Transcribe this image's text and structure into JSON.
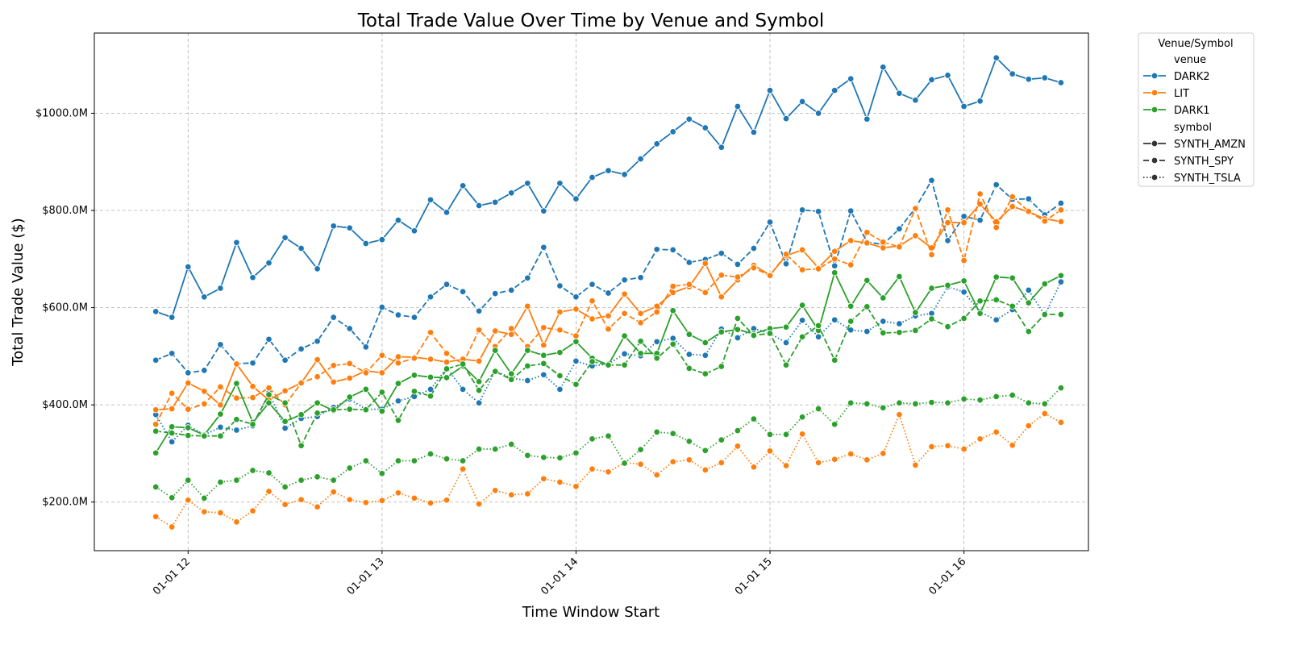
{
  "chart_data": {
    "type": "line",
    "title": "Total Trade Value Over Time by Venue and Symbol",
    "xlabel": "Time Window Start",
    "ylabel": "Total Trade Value ($)",
    "x_tick_labels": [
      "01-01 12",
      "01-01 13",
      "01-01 14",
      "01-01 15",
      "01-01 16"
    ],
    "x_tick_hours": [
      12,
      13,
      14,
      15,
      16
    ],
    "x_start_hour": 11.8333,
    "x_step_hours": 0.08333,
    "xlim_hours": [
      11.5167,
      16.6417
    ],
    "y_unit": "$M",
    "y_ticks": [
      200,
      400,
      600,
      800,
      1000
    ],
    "y_tick_labels": [
      "$200.0M",
      "$400.0M",
      "$600.0M",
      "$800.0M",
      "$1000.0M"
    ],
    "ylim": [
      100,
      1165
    ],
    "grid": true,
    "legend_placement": "outside-upper-right",
    "legend": {
      "title": "Venue/Symbol",
      "venue_header": "venue",
      "symbol_header": "symbol",
      "venues": [
        {
          "name": "DARK2",
          "color": "#1f77b4"
        },
        {
          "name": "LIT",
          "color": "#ff7f0e"
        },
        {
          "name": "DARK1",
          "color": "#2ca02c"
        }
      ],
      "symbols": [
        {
          "name": "SYNTH_AMZN",
          "dash": "solid"
        },
        {
          "name": "SYNTH_SPY",
          "dash": "dashed"
        },
        {
          "name": "SYNTH_TSLA",
          "dash": "dotted"
        }
      ]
    },
    "series": [
      {
        "venue": "DARK2",
        "symbol": "SYNTH_AMZN",
        "values": [
          592,
          580,
          684,
          622,
          640,
          734,
          662,
          692,
          744,
          722,
          680,
          768,
          764,
          732,
          740,
          780,
          758,
          822,
          796,
          851,
          810,
          817,
          836,
          856,
          799,
          856,
          824,
          868,
          882,
          874,
          906,
          937,
          962,
          988,
          970,
          930,
          1014,
          961,
          1047,
          989,
          1024,
          1000,
          1047,
          1071,
          988,
          1095,
          1041,
          1027,
          1069,
          1078,
          1014,
          1025,
          1114,
          1081,
          1070,
          1073,
          1063
        ]
      },
      {
        "venue": "DARK2",
        "symbol": "SYNTH_SPY",
        "values": [
          492,
          506,
          466,
          471,
          524,
          485,
          486,
          535,
          492,
          515,
          531,
          580,
          557,
          519,
          601,
          585,
          580,
          622,
          648,
          633,
          593,
          629,
          636,
          661,
          724,
          645,
          622,
          648,
          630,
          657,
          662,
          720,
          719,
          693,
          699,
          712,
          689,
          722,
          776,
          690,
          801,
          798,
          686,
          799,
          735,
          730,
          762,
          805,
          862,
          738,
          788,
          780,
          853,
          823,
          824,
          791,
          815
        ]
      },
      {
        "venue": "DARK2",
        "symbol": "SYNTH_TSLA",
        "values": [
          380,
          324,
          358,
          338,
          354,
          348,
          357,
          425,
          352,
          372,
          376,
          395,
          412,
          391,
          391,
          408,
          417,
          432,
          476,
          432,
          404,
          470,
          455,
          450,
          462,
          432,
          490,
          480,
          484,
          505,
          501,
          530,
          537,
          504,
          502,
          556,
          538,
          557,
          547,
          528,
          574,
          540,
          575,
          554,
          551,
          572,
          567,
          583,
          588,
          643,
          632,
          591,
          575,
          596,
          636,
          585,
          653
        ]
      },
      {
        "venue": "LIT",
        "symbol": "SYNTH_AMZN",
        "values": [
          390,
          392,
          445,
          428,
          400,
          484,
          438,
          410,
          429,
          445,
          493,
          447,
          455,
          470,
          466,
          499,
          498,
          494,
          488,
          494,
          490,
          552,
          545,
          603,
          523,
          591,
          597,
          577,
          583,
          628,
          588,
          603,
          631,
          643,
          691,
          622,
          657,
          687,
          667,
          707,
          719,
          682,
          716,
          738,
          733,
          723,
          727,
          748,
          723,
          775,
          775,
          813,
          777,
          808,
          797,
          783,
          777
        ]
      },
      {
        "venue": "LIT",
        "symbol": "SYNTH_SPY",
        "values": [
          360,
          424,
          391,
          402,
          437,
          414,
          415,
          435,
          400,
          445,
          458,
          481,
          485,
          466,
          502,
          486,
          496,
          549,
          506,
          484,
          554,
          520,
          557,
          520,
          559,
          554,
          542,
          614,
          556,
          588,
          569,
          591,
          644,
          648,
          631,
          667,
          663,
          682,
          666,
          710,
          678,
          680,
          700,
          688,
          755,
          735,
          725,
          804,
          709,
          801,
          697,
          834,
          765,
          828,
          798,
          778,
          801
        ]
      },
      {
        "venue": "LIT",
        "symbol": "SYNTH_TSLA",
        "values": [
          170,
          149,
          204,
          180,
          178,
          159,
          182,
          222,
          195,
          205,
          190,
          221,
          205,
          199,
          203,
          219,
          208,
          198,
          204,
          268,
          196,
          224,
          215,
          217,
          248,
          241,
          232,
          268,
          262,
          281,
          278,
          256,
          283,
          287,
          266,
          281,
          315,
          272,
          305,
          275,
          340,
          281,
          288,
          299,
          287,
          300,
          380,
          276,
          314,
          316,
          309,
          330,
          344,
          317,
          357,
          382,
          364
        ]
      },
      {
        "venue": "DARK1",
        "symbol": "SYNTH_AMZN",
        "values": [
          301,
          355,
          353,
          338,
          381,
          444,
          364,
          404,
          366,
          380,
          404,
          388,
          416,
          432,
          387,
          444,
          461,
          457,
          456,
          480,
          448,
          512,
          464,
          512,
          502,
          508,
          530,
          496,
          482,
          542,
          506,
          506,
          594,
          545,
          528,
          550,
          555,
          546,
          557,
          560,
          605,
          553,
          672,
          603,
          656,
          620,
          664,
          590,
          640,
          646,
          655,
          588,
          663,
          661,
          610,
          649,
          666
        ]
      },
      {
        "venue": "DARK1",
        "symbol": "SYNTH_SPY",
        "values": [
          346,
          342,
          337,
          336,
          336,
          370,
          360,
          421,
          404,
          316,
          383,
          390,
          391,
          390,
          426,
          368,
          428,
          418,
          474,
          484,
          430,
          469,
          452,
          480,
          485,
          460,
          442,
          489,
          482,
          482,
          531,
          496,
          525,
          475,
          464,
          479,
          578,
          543,
          547,
          482,
          540,
          563,
          492,
          572,
          602,
          548,
          549,
          553,
          577,
          561,
          578,
          614,
          616,
          603,
          551,
          586,
          586
        ]
      },
      {
        "venue": "DARK1",
        "symbol": "SYNTH_TSLA",
        "values": [
          231,
          209,
          245,
          208,
          241,
          245,
          265,
          260,
          231,
          245,
          252,
          245,
          270,
          285,
          259,
          285,
          285,
          299,
          289,
          285,
          309,
          309,
          319,
          296,
          292,
          291,
          301,
          330,
          336,
          280,
          308,
          344,
          341,
          325,
          306,
          328,
          347,
          371,
          339,
          339,
          375,
          392,
          360,
          404,
          402,
          394,
          404,
          402,
          405,
          404,
          412,
          410,
          417,
          420,
          404,
          402,
          435
        ]
      }
    ]
  }
}
